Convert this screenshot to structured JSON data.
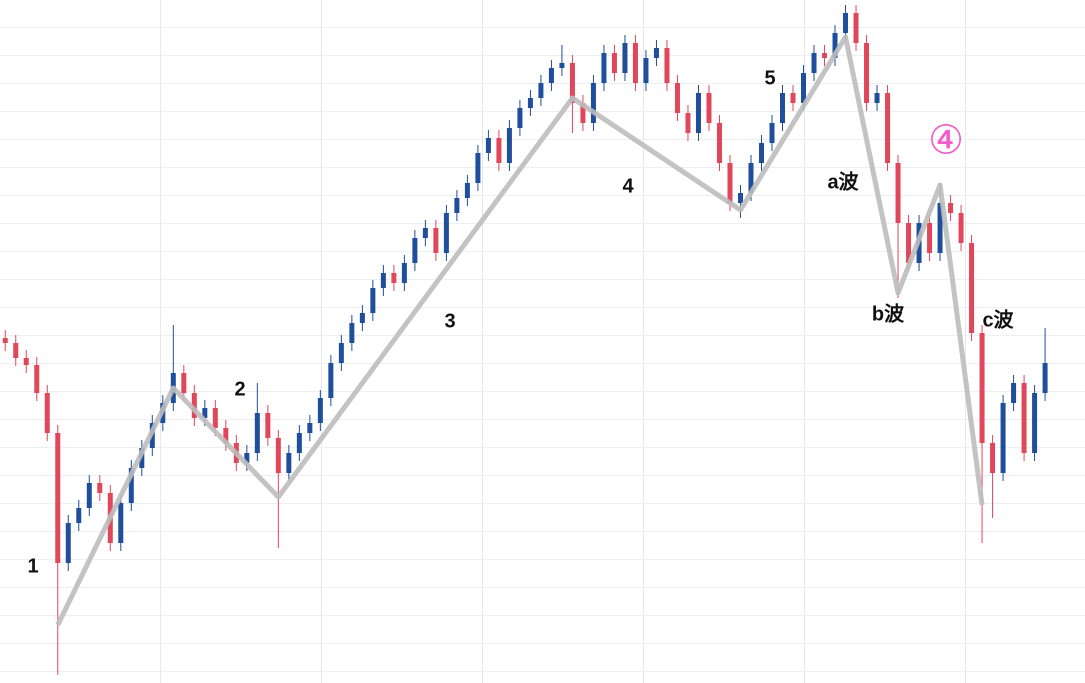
{
  "chart_data": {
    "type": "candlestick",
    "xlim": [
      -0.5,
      102.8
    ],
    "ylim": [
      0,
      683
    ],
    "up_color": "#1f4e9c",
    "down_color": "#e0475a",
    "wave_color": "#bdbdbd",
    "marker_color": "#f25ccb",
    "open": [
      345,
      340,
      325,
      318,
      290,
      250,
      120,
      160,
      175,
      200,
      190,
      140,
      180,
      215,
      235,
      260,
      280,
      310,
      290,
      265,
      275,
      255,
      240,
      220,
      230,
      270,
      245,
      210,
      230,
      250,
      260,
      285,
      320,
      340,
      360,
      370,
      395,
      410,
      400,
      420,
      445,
      455,
      430,
      470,
      485,
      500,
      530,
      545,
      520,
      555,
      575,
      585,
      600,
      615,
      620,
      580,
      560,
      600,
      630,
      610,
      640,
      600,
      625,
      635,
      600,
      570,
      550,
      590,
      560,
      520,
      480,
      490,
      520,
      540,
      560,
      590,
      580,
      610,
      630,
      625,
      650,
      670,
      640,
      580,
      590,
      520,
      460,
      420,
      460,
      430,
      480,
      470,
      440,
      350,
      240,
      210,
      280,
      300,
      230,
      290
    ],
    "close": [
      340,
      325,
      318,
      290,
      250,
      120,
      160,
      175,
      200,
      190,
      140,
      180,
      215,
      235,
      260,
      280,
      310,
      290,
      265,
      275,
      255,
      240,
      220,
      230,
      270,
      245,
      210,
      230,
      250,
      260,
      285,
      320,
      340,
      360,
      370,
      395,
      410,
      400,
      420,
      445,
      455,
      430,
      470,
      485,
      500,
      530,
      545,
      520,
      555,
      575,
      585,
      600,
      615,
      620,
      580,
      560,
      600,
      630,
      610,
      640,
      600,
      625,
      635,
      600,
      570,
      550,
      590,
      560,
      520,
      480,
      490,
      520,
      540,
      560,
      590,
      580,
      610,
      630,
      625,
      650,
      670,
      640,
      580,
      590,
      520,
      460,
      420,
      460,
      430,
      480,
      470,
      440,
      350,
      240,
      210,
      280,
      300,
      230,
      290,
      320
    ],
    "high": [
      353,
      348,
      333,
      326,
      298,
      258,
      168,
      183,
      208,
      208,
      198,
      188,
      223,
      243,
      268,
      288,
      358,
      318,
      298,
      283,
      283,
      263,
      248,
      238,
      300,
      278,
      253,
      238,
      258,
      268,
      293,
      328,
      348,
      368,
      378,
      403,
      418,
      418,
      428,
      453,
      463,
      463,
      478,
      493,
      508,
      538,
      553,
      553,
      563,
      583,
      593,
      608,
      623,
      638,
      628,
      588,
      608,
      638,
      638,
      648,
      648,
      633,
      643,
      643,
      608,
      578,
      598,
      598,
      568,
      528,
      498,
      528,
      548,
      568,
      598,
      598,
      618,
      638,
      638,
      658,
      678,
      678,
      648,
      598,
      598,
      528,
      468,
      468,
      468,
      500,
      488,
      478,
      448,
      358,
      248,
      288,
      308,
      308,
      298,
      355
    ],
    "low": [
      332,
      317,
      310,
      282,
      242,
      8,
      112,
      152,
      167,
      182,
      132,
      132,
      172,
      207,
      227,
      252,
      272,
      282,
      257,
      257,
      247,
      232,
      212,
      212,
      222,
      237,
      135,
      202,
      222,
      242,
      252,
      277,
      312,
      332,
      352,
      362,
      387,
      392,
      392,
      412,
      437,
      422,
      422,
      462,
      477,
      492,
      522,
      512,
      512,
      547,
      567,
      577,
      592,
      607,
      550,
      552,
      552,
      592,
      602,
      602,
      592,
      592,
      617,
      592,
      562,
      542,
      542,
      552,
      512,
      472,
      465,
      482,
      512,
      532,
      552,
      572,
      572,
      602,
      617,
      617,
      642,
      632,
      572,
      572,
      512,
      385,
      412,
      412,
      422,
      422,
      462,
      432,
      342,
      140,
      165,
      202,
      272,
      222,
      222,
      282
    ],
    "wave": {
      "x": [
        5,
        16,
        26,
        54,
        70,
        80,
        85,
        89,
        93
      ],
      "values": [
        58,
        295,
        186,
        585,
        473,
        646,
        390,
        498,
        178
      ]
    },
    "wave_labels": [
      "1",
      "2",
      "3",
      "4",
      "5",
      "a波",
      "b波",
      "c波",
      "④"
    ]
  }
}
